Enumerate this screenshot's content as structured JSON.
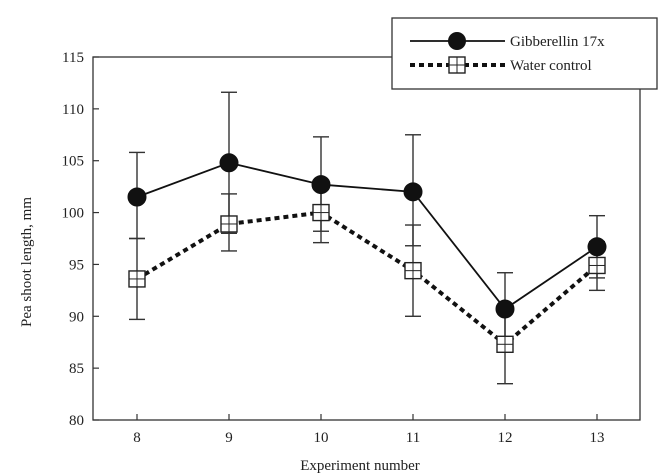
{
  "chart_data": {
    "type": "line",
    "title": "",
    "xlabel": "Experiment number",
    "ylabel": "Pea shoot length, mm",
    "categories": [
      "8",
      "9",
      "10",
      "11",
      "12",
      "13"
    ],
    "ylim": [
      80,
      115
    ],
    "yticks": [
      80,
      85,
      90,
      95,
      100,
      105,
      110,
      115
    ],
    "grid": false,
    "legend_position": "top-right",
    "series": [
      {
        "name": "Gibberellin 17x",
        "marker": "filled-circle",
        "line_style": "solid",
        "color": "#111111",
        "values": [
          101.5,
          104.8,
          102.7,
          102.0,
          90.7,
          96.7
        ],
        "error_upper": [
          105.8,
          111.6,
          107.3,
          107.5,
          94.2,
          99.7
        ],
        "error_lower": [
          97.5,
          98.0,
          98.2,
          96.8,
          87.5,
          93.7
        ]
      },
      {
        "name": "Water control",
        "marker": "open-square",
        "line_style": "dashed",
        "color": "#111111",
        "values": [
          93.6,
          98.9,
          100.0,
          94.4,
          87.3,
          94.9
        ],
        "error_upper": [
          97.5,
          101.8,
          102.8,
          98.8,
          91.0,
          97.2
        ],
        "error_lower": [
          89.7,
          96.3,
          97.1,
          90.0,
          83.5,
          92.5
        ]
      }
    ]
  }
}
